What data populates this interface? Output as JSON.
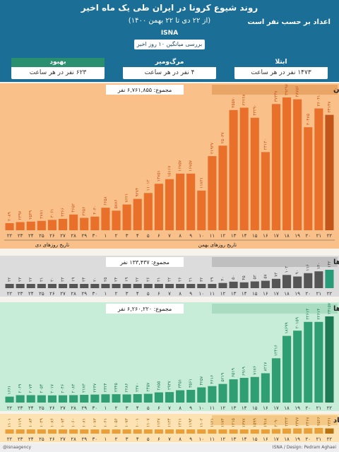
{
  "header": {
    "title": "روند شیوع کرونا در ایران طی یک ماه اخیر",
    "subtitle": "(از ۲۲ دی تا ۲۲ بهمن ۱۴۰۰)",
    "agency": "ISNA",
    "note": "اعداد بر حسب نفر است",
    "avg_label": "بررسی میانگین ۱۰ روز اخیر"
  },
  "stats": [
    {
      "title": "بهبود",
      "value": "۶۲۳ نفر در هر ساعت",
      "color": "#2a8f6e"
    },
    {
      "title": "مرگ‌ومیر",
      "value": "۴ نفر در هر ساعت",
      "color": "#1b6f97"
    },
    {
      "title": "ابتلا",
      "value": "۱۴۷۳ نفر در هر ساعت",
      "color": "#1b6f97"
    }
  ],
  "chart_data": [
    {
      "type": "bar",
      "title": "مبتلایان",
      "total_label": "مجموع: ۶,۷۶۱,۸۵۵ نفر",
      "categories": [
        "۲۲",
        "۲۳",
        "۲۴",
        "۲۵",
        "۲۶",
        "۲۷",
        "۲۸",
        "۲۹",
        "۳۰",
        "۱",
        "۲",
        "۳",
        "۴",
        "۵",
        "۶",
        "۷",
        "۸",
        "۹",
        "۱۰",
        "۱۱",
        "۱۲",
        "۱۳",
        "۱۴",
        "۱۵",
        "۱۶",
        "۱۷",
        "۱۸",
        "۱۹",
        "۲۰",
        "۲۱",
        "۲۲"
      ],
      "values": [
        2089,
        2397,
        2549,
        2771,
        3061,
        3366,
        4652,
        3656,
        4030,
        6658,
        5786,
        7621,
        9274,
        11012,
        13751,
        15117,
        16757,
        16757,
        11731,
        21937,
        25037,
        35570,
        36268,
        33290,
        23130,
        37347,
        39297,
        38756,
        30485,
        36041,
        34147
      ],
      "value_labels": [
        "۲۰۸۹",
        "۲۳۹۷",
        "۲۵۴۹",
        "۲۷۷۱",
        "۳۰۶۱",
        "۳۳۶۶",
        "۴۶۵۲",
        "۳۶۵۶",
        "۴۰۳۰",
        "۶۶۵۸",
        "۵۷۸۶",
        "۷۶۲۱",
        "۹۲۷۴",
        "۱۱۰۱۲",
        "۱۳۷۵۱",
        "۱۵۱۱۷",
        "۱۶۷۵۷",
        "۱۶۷۵۷",
        "۱۱۷۳۱",
        "۲۱۹۳۷",
        "۲۵۰۳۷",
        "۳۵۵۷۰",
        "۳۶۲۶۸",
        "۳۳۲۹۰",
        "۲۳۱۳۰",
        "۳۷۳۴۷",
        "۳۹۲۹۷",
        "۳۸۷۵۶",
        "۳۰۴۸۵",
        "۳۶۰۴۱",
        "۳۴۱۴۷"
      ],
      "x_labels": [
        "تاریخ روزهای دی",
        "تاریخ روزهای بهمن"
      ]
    },
    {
      "type": "bar",
      "title": "فوتی‌ها",
      "total_label": "مجموع: ۱۳۳,۴۳۷ نفر",
      "categories": [
        "۲۲",
        "۲۳",
        "۲۴",
        "۲۵",
        "۲۶",
        "۲۷",
        "۲۸",
        "۲۹",
        "۳۰",
        "۱",
        "۲",
        "۳",
        "۴",
        "۵",
        "۶",
        "۷",
        "۸",
        "۹",
        "۱۰",
        "۱۱",
        "۱۲",
        "۱۳",
        "۱۴",
        "۱۵",
        "۱۶",
        "۱۷",
        "۱۸",
        "۱۹",
        "۲۰",
        "۲۱",
        "۲۲"
      ],
      "values": [
        22,
        23,
        22,
        21,
        20,
        23,
        19,
        24,
        20,
        25,
        24,
        19,
        22,
        26,
        21,
        22,
        26,
        21,
        32,
        29,
        40,
        50,
        45,
        52,
        57,
        72,
        102,
        90,
        116,
        130,
        142
      ],
      "value_labels": [
        "۲۲",
        "۲۳",
        "۲۲",
        "۲۱",
        "۲۰",
        "۲۳",
        "۱۹",
        "۲۴",
        "۲۰",
        "۲۵",
        "۲۴",
        "۱۹",
        "۲۲",
        "۲۶",
        "۲۱",
        "۲۲",
        "۲۶",
        "۲۱",
        "۳۲",
        "۲۹",
        "۴۰",
        "۵۰",
        "۴۵",
        "۵۲",
        "۵۷",
        "۷۲",
        "۱۰۲",
        "۹۰",
        "۱۱۶",
        "۱۳۰",
        "۱۴۲"
      ]
    },
    {
      "type": "bar",
      "title": "بهبودیافته‌ها",
      "total_label": "مجموع: ۶,۲۶۰,۲۲۰ نفر",
      "categories": [
        "۲۲",
        "۲۳",
        "۲۴",
        "۲۵",
        "۲۶",
        "۲۷",
        "۲۸",
        "۲۹",
        "۳۰",
        "۱",
        "۲",
        "۳",
        "۴",
        "۵",
        "۶",
        "۷",
        "۸",
        "۹",
        "۱۰",
        "۱۱",
        "۱۲",
        "۱۳",
        "۱۴",
        "۱۵",
        "۱۶",
        "۱۷",
        "۱۸",
        "۱۹",
        "۲۰",
        "۲۱",
        "۲۲"
      ],
      "values": [
        1661,
        2069,
        2074,
        2054,
        2017,
        2046,
        2083,
        2173,
        2237,
        2324,
        2345,
        2286,
        2370,
        2457,
        2855,
        2937,
        3451,
        3561,
        4257,
        4616,
        5219,
        6519,
        6919,
        7176,
        8217,
        12416,
        18699,
        20159,
        22614,
        22614,
        24157
      ],
      "value_labels": [
        "۱۶۶۱",
        "۲۰۶۹",
        "۲۰۷۴",
        "۲۰۵۴",
        "۲۰۱۷",
        "۲۰۴۶",
        "۲۰۸۳",
        "۲۱۷۳",
        "۲۲۳۷",
        "۲۳۲۴",
        "۲۳۴۵",
        "۲۲۸۶",
        "۲۳۷۰",
        "۲۴۵۷",
        "۲۸۵۵",
        "۲۹۳۷",
        "۳۴۵۱",
        "۳۵۶۱",
        "۴۲۵۷",
        "۴۶۱۶",
        "۵۲۱۹",
        "۶۵۱۹",
        "۶۹۱۹",
        "۷۱۷۶",
        "۸۲۱۷",
        "۱۲۴۱۶",
        "۱۸۶۹۹",
        "۲۰۱۵۹",
        "۲۲۶۱۴",
        "۲۲۶۱۴",
        "۲۴۱۵۷"
      ]
    },
    {
      "type": "bar",
      "title": "بیماران با وضعیت حاد",
      "categories": [
        "۲۲",
        "۲۳",
        "۲۴",
        "۲۵",
        "۲۶",
        "۲۷",
        "۲۸",
        "۲۹",
        "۳۰",
        "۱",
        "۲",
        "۳",
        "۴",
        "۵",
        "۶",
        "۷",
        "۸",
        "۹",
        "۱۰",
        "۱۱",
        "۱۲",
        "۱۳",
        "۱۴",
        "۱۵",
        "۱۶",
        "۱۷",
        "۱۸",
        "۱۹",
        "۲۰",
        "۲۱",
        "۲۲"
      ],
      "values": [
        1101,
        1119,
        1084,
        1039,
        1086,
        1074,
        1060,
        1081,
        1073,
        1061,
        1056,
        1073,
        1001,
        1107,
        1127,
        1124,
        1211,
        1194,
        1102,
        1121,
        1174,
        1215,
        1377,
        1599,
        1918,
        2090,
        2323,
        2377,
        2467,
        2566,
        2361
      ],
      "value_labels": [
        "۱۱۰۱",
        "۱۱۱۹",
        "۱۰۸۴",
        "۱۰۳۹",
        "۱۰۸۶",
        "۱۰۷۴",
        "۱۰۶۰",
        "۱۰۸۱",
        "۱۰۷۳",
        "۱۰۶۱",
        "۱۰۵۶",
        "۱۰۷۳",
        "۱۰۰۱",
        "۱۱۰۷",
        "۱۱۲۷",
        "۱۱۲۴",
        "۱۲۱۱",
        "۱۱۹۴",
        "۱۱۰۲",
        "۱۱۲۱",
        "۱۱۷۴",
        "۱۲۱۵",
        "۱۳۷۷",
        "۱۵۹۹",
        "۱۹۱۸",
        "۲۰۹۰",
        "۲۳۲۳",
        "۲۳۷۷",
        "۲۴۶۷",
        "۲۵۶۶",
        "۲۳۶۱"
      ]
    }
  ],
  "footer": {
    "left": "@isnaagency",
    "right": "ISNA / Design: Pedram Aghaei"
  }
}
